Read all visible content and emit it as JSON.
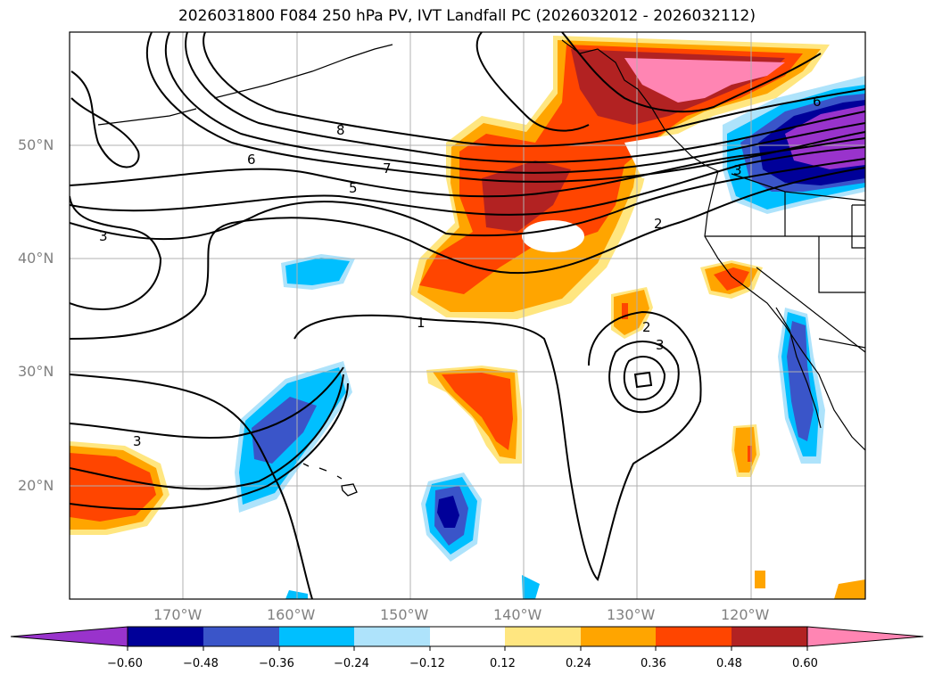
{
  "title": "2026031800 F084 250 hPa PV, IVT Landfall PC (2026032012 - 2026032112)",
  "lat_labels": [
    "50°N",
    "40°N",
    "30°N",
    "20°N"
  ],
  "lon_labels": [
    "170°W",
    "160°W",
    "150°W",
    "140°W",
    "130°W",
    "120°W"
  ],
  "pv_contour_labels": [
    "8",
    "7",
    "6",
    "5",
    "3",
    "2",
    "1",
    "2",
    "3",
    "3",
    "6",
    "3"
  ],
  "colorbar": {
    "ticks": [
      "−0.60",
      "−0.48",
      "−0.36",
      "−0.24",
      "−0.12",
      "0.12",
      "0.24",
      "0.36",
      "0.48",
      "0.60"
    ],
    "colors": [
      "#9933cc",
      "#000099",
      "#3a55c9",
      "#00bfff",
      "#aee3fb",
      "#ffffff",
      "#ffe680",
      "#ffa500",
      "#ff4500",
      "#b22222",
      "#ff85b3"
    ]
  }
}
